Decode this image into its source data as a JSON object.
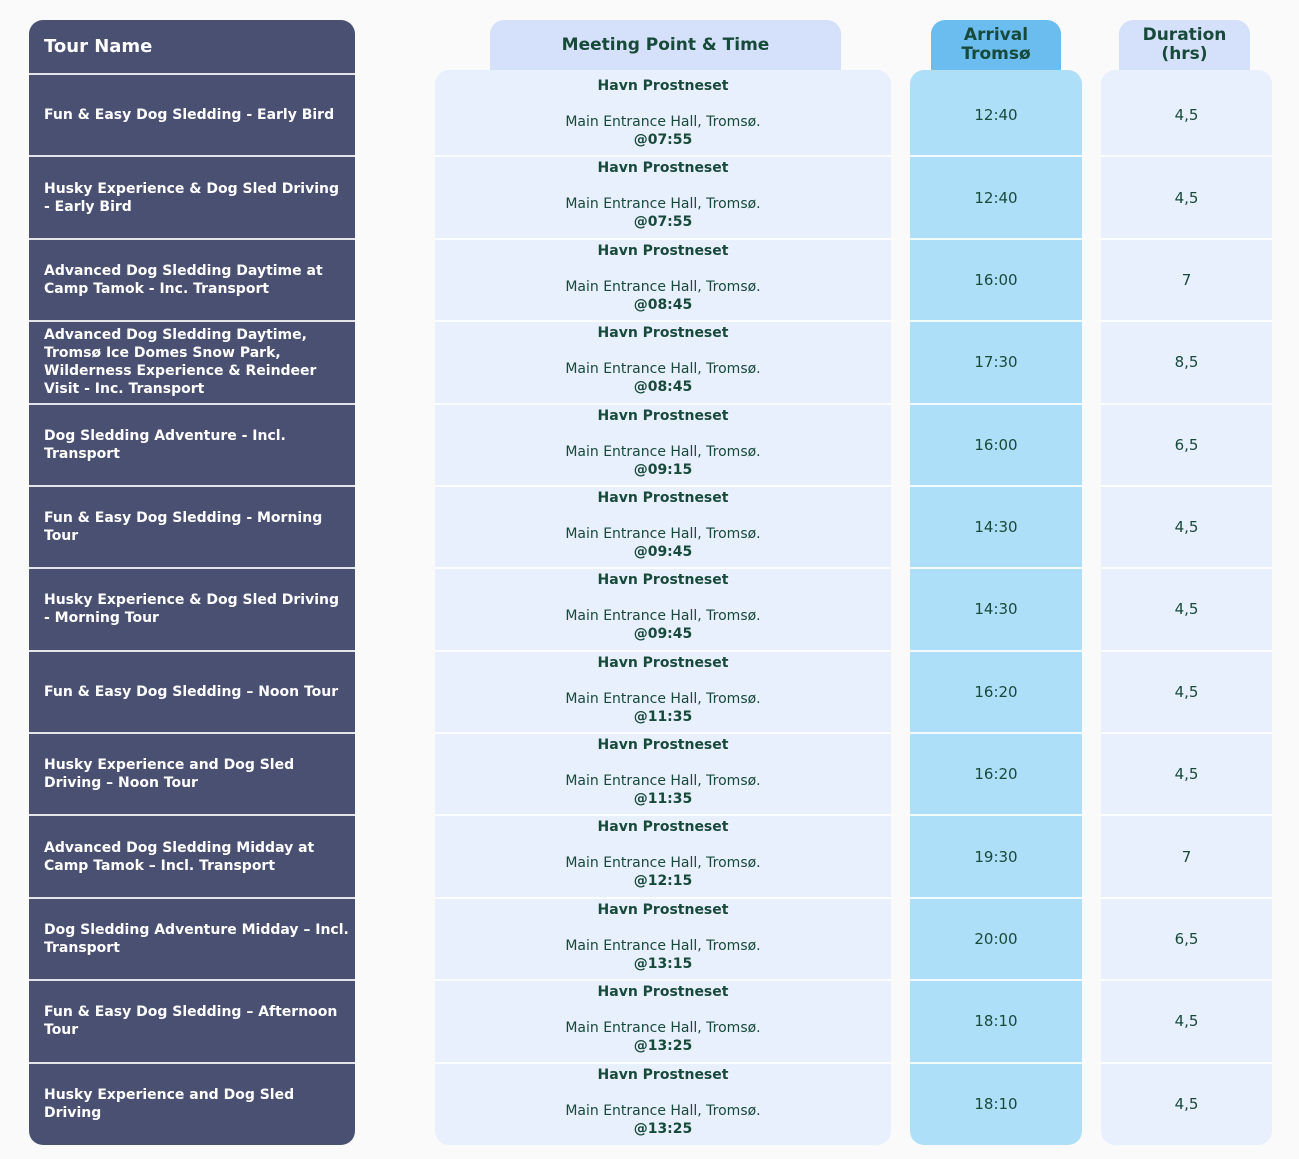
{
  "table": {
    "headers": [
      "Tour Name",
      "Meeting Point & Time",
      "Arrival Tromsø",
      "Duration (hrs)"
    ],
    "rows": [
      {
        "tour": "Fun & Easy Dog Sledding -  Early Bird",
        "place": "Havn Prostneset",
        "address": "Main Entrance Hall, Tromsø.",
        "time": "@07:55",
        "arrival": "12:40",
        "duration": "4,5"
      },
      {
        "tour": "Husky Experience & Dog Sled Driving - Early Bird",
        "place": "Havn Prostneset",
        "address": "Main Entrance Hall, Tromsø.",
        "time": "@07:55",
        "arrival": "12:40",
        "duration": "4,5"
      },
      {
        "tour": "Advanced Dog Sledding Daytime at Camp Tamok - Inc. Transport",
        "place": "Havn Prostneset",
        "address": "Main Entrance Hall, Tromsø.",
        "time": "@08:45",
        "arrival": "16:00",
        "duration": "7"
      },
      {
        "tour": "Advanced Dog Sledding Daytime, Tromsø Ice Domes Snow Park, Wilderness Experience & Reindeer Visit - Inc. Transport",
        "place": "Havn Prostneset",
        "address": "Main Entrance Hall, Tromsø.",
        "time": "@08:45",
        "arrival": "17:30",
        "duration": "8,5"
      },
      {
        "tour": "Dog Sledding Adventure - Incl. Transport",
        "place": "Havn Prostneset",
        "address": "Main Entrance Hall, Tromsø.",
        "time": "@09:15",
        "arrival": "16:00",
        "duration": "6,5"
      },
      {
        "tour": "Fun & Easy Dog Sledding - Morning Tour",
        "place": "Havn Prostneset",
        "address": "Main Entrance Hall, Tromsø.",
        "time": "@09:45",
        "arrival": "14:30",
        "duration": "4,5"
      },
      {
        "tour": "Husky Experience & Dog Sled Driving - Morning Tour",
        "place": "Havn Prostneset",
        "address": "Main Entrance Hall, Tromsø.",
        "time": "@09:45",
        "arrival": "14:30",
        "duration": "4,5"
      },
      {
        "tour": "Fun & Easy Dog Sledding – Noon Tour",
        "place": "Havn Prostneset",
        "address": "Main Entrance Hall, Tromsø.",
        "time": "@11:35",
        "arrival": "16:20",
        "duration": "4,5"
      },
      {
        "tour": "Husky Experience and Dog Sled Driving – Noon Tour",
        "place": "Havn Prostneset",
        "address": "Main Entrance Hall, Tromsø.",
        "time": "@11:35",
        "arrival": "16:20",
        "duration": "4,5"
      },
      {
        "tour": "Advanced Dog Sledding Midday at Camp Tamok – Incl. Transport",
        "place": "Havn Prostneset",
        "address": "Main Entrance Hall, Tromsø.",
        "time": "@12:15",
        "arrival": "19:30",
        "duration": "7"
      },
      {
        "tour": "Dog Sledding Adventure Midday – Incl. Transport",
        "place": "Havn Prostneset",
        "address": "Main Entrance Hall, Tromsø.",
        "time": "@13:15",
        "arrival": "20:00",
        "duration": "6,5"
      },
      {
        "tour": "Fun & Easy Dog Sledding – Afternoon Tour",
        "place": "Havn Prostneset",
        "address": "Main Entrance Hall, Tromsø.",
        "time": "@13:25",
        "arrival": "18:10",
        "duration": "4,5"
      },
      {
        "tour": "Husky Experience and Dog Sled Driving",
        "place": "Havn Prostneset",
        "address": "Main Entrance Hall, Tromsø.",
        "time": "@13:25",
        "arrival": "18:10",
        "duration": "4,5"
      }
    ]
  }
}
